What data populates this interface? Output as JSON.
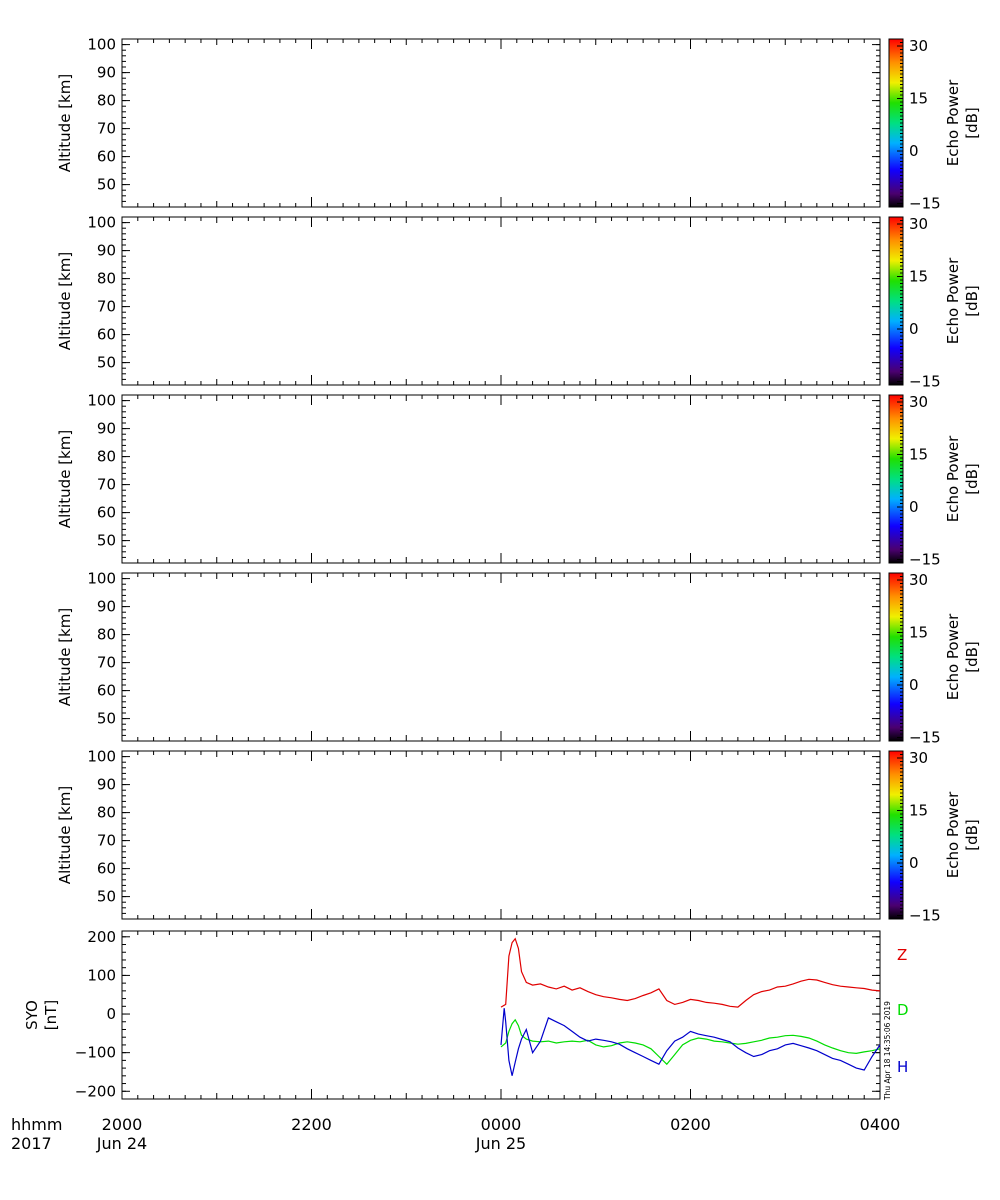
{
  "chart_data": [
    {
      "type": "heatmap",
      "ylabel": "Altitude  [km]",
      "yticks": [
        50,
        60,
        70,
        80,
        90,
        100
      ],
      "ylim": [
        42,
        102
      ],
      "colorbar": {
        "label_line1": "Echo Power",
        "label_line2": "[dB]",
        "ticks": [
          30,
          15,
          0,
          -15
        ],
        "range": [
          -16,
          32
        ]
      },
      "data": []
    },
    {
      "type": "heatmap",
      "ylabel": "Altitude  [km]",
      "yticks": [
        50,
        60,
        70,
        80,
        90,
        100
      ],
      "ylim": [
        42,
        102
      ],
      "colorbar": {
        "label_line1": "Echo Power",
        "label_line2": "[dB]",
        "ticks": [
          30,
          15,
          0,
          -15
        ],
        "range": [
          -16,
          32
        ]
      },
      "data": []
    },
    {
      "type": "heatmap",
      "ylabel": "Altitude  [km]",
      "yticks": [
        50,
        60,
        70,
        80,
        90,
        100
      ],
      "ylim": [
        42,
        102
      ],
      "colorbar": {
        "label_line1": "Echo Power",
        "label_line2": "[dB]",
        "ticks": [
          30,
          15,
          0,
          -15
        ],
        "range": [
          -16,
          32
        ]
      },
      "data": []
    },
    {
      "type": "heatmap",
      "ylabel": "Altitude  [km]",
      "yticks": [
        50,
        60,
        70,
        80,
        90,
        100
      ],
      "ylim": [
        42,
        102
      ],
      "colorbar": {
        "label_line1": "Echo Power",
        "label_line2": "[dB]",
        "ticks": [
          30,
          15,
          0,
          -15
        ],
        "range": [
          -16,
          32
        ]
      },
      "data": []
    },
    {
      "type": "heatmap",
      "ylabel": "Altitude  [km]",
      "yticks": [
        50,
        60,
        70,
        80,
        90,
        100
      ],
      "ylim": [
        42,
        102
      ],
      "colorbar": {
        "label_line1": "Echo Power",
        "label_line2": "[dB]",
        "ticks": [
          30,
          15,
          0,
          -15
        ],
        "range": [
          -16,
          32
        ]
      },
      "data": []
    },
    {
      "type": "line",
      "ylabel_line1": "SYO",
      "ylabel_line2": "[nT]",
      "yticks": [
        200,
        100,
        0,
        -100,
        -200
      ],
      "ylim": [
        -220,
        215
      ],
      "series": [
        {
          "name": "Z",
          "color": "#e00000",
          "x": [
            "00:00",
            "00:03",
            "00:05",
            "00:07",
            "00:09",
            "00:11",
            "00:13",
            "00:16",
            "00:20",
            "00:25",
            "00:30",
            "00:35",
            "00:40",
            "00:45",
            "00:50",
            "00:55",
            "01:00",
            "01:05",
            "01:10",
            "01:15",
            "01:20",
            "01:25",
            "01:30",
            "01:35",
            "01:40",
            "01:45",
            "01:50",
            "01:55",
            "02:00",
            "02:05",
            "02:10",
            "02:15",
            "02:20",
            "02:25",
            "02:30",
            "02:35",
            "02:40",
            "02:45",
            "02:50",
            "02:55",
            "03:00",
            "03:05",
            "03:10",
            "03:15",
            "03:20",
            "03:25",
            "03:30",
            "03:35",
            "03:40",
            "03:45",
            "03:50",
            "03:55",
            "04:00"
          ],
          "y": [
            18,
            25,
            150,
            185,
            195,
            170,
            110,
            82,
            75,
            78,
            70,
            65,
            72,
            62,
            68,
            58,
            50,
            45,
            42,
            38,
            35,
            40,
            48,
            55,
            65,
            35,
            25,
            30,
            38,
            35,
            30,
            28,
            25,
            20,
            18,
            35,
            50,
            58,
            62,
            70,
            72,
            78,
            85,
            90,
            88,
            82,
            76,
            72,
            70,
            68,
            66,
            62,
            60
          ]
        },
        {
          "name": "D",
          "color": "#00dd00",
          "x": [
            "00:00",
            "00:03",
            "00:05",
            "00:07",
            "00:09",
            "00:11",
            "00:13",
            "00:16",
            "00:20",
            "00:25",
            "00:30",
            "00:35",
            "00:40",
            "00:45",
            "00:50",
            "00:55",
            "01:00",
            "01:05",
            "01:10",
            "01:15",
            "01:20",
            "01:25",
            "01:30",
            "01:35",
            "01:40",
            "01:45",
            "01:50",
            "01:55",
            "02:00",
            "02:05",
            "02:10",
            "02:15",
            "02:20",
            "02:25",
            "02:30",
            "02:35",
            "02:40",
            "02:45",
            "02:50",
            "02:55",
            "03:00",
            "03:05",
            "03:10",
            "03:15",
            "03:20",
            "03:25",
            "03:30",
            "03:35",
            "03:40",
            "03:45",
            "03:50",
            "03:55",
            "04:00"
          ],
          "y": [
            -85,
            -75,
            -45,
            -25,
            -15,
            -30,
            -55,
            -65,
            -70,
            -72,
            -70,
            -75,
            -72,
            -70,
            -72,
            -68,
            -80,
            -85,
            -82,
            -75,
            -72,
            -75,
            -80,
            -90,
            -110,
            -130,
            -105,
            -80,
            -68,
            -62,
            -65,
            -70,
            -72,
            -75,
            -78,
            -76,
            -72,
            -68,
            -62,
            -60,
            -56,
            -55,
            -58,
            -62,
            -70,
            -80,
            -88,
            -95,
            -100,
            -102,
            -98,
            -95,
            -90
          ]
        },
        {
          "name": "H",
          "color": "#0000cc",
          "x": [
            "00:00",
            "00:02",
            "00:03",
            "00:05",
            "00:07",
            "00:09",
            "00:11",
            "00:13",
            "00:16",
            "00:20",
            "00:25",
            "00:30",
            "00:35",
            "00:40",
            "00:45",
            "00:50",
            "00:55",
            "01:00",
            "01:05",
            "01:10",
            "01:15",
            "01:20",
            "01:25",
            "01:30",
            "01:35",
            "01:40",
            "01:45",
            "01:50",
            "01:55",
            "02:00",
            "02:05",
            "02:10",
            "02:15",
            "02:20",
            "02:25",
            "02:30",
            "02:35",
            "02:40",
            "02:45",
            "02:50",
            "02:55",
            "03:00",
            "03:05",
            "03:10",
            "03:15",
            "03:20",
            "03:25",
            "03:30",
            "03:35",
            "03:40",
            "03:45",
            "03:50",
            "03:55",
            "04:00"
          ],
          "y": [
            -80,
            15,
            -20,
            -120,
            -160,
            -125,
            -90,
            -65,
            -40,
            -100,
            -70,
            -10,
            -20,
            -30,
            -45,
            -60,
            -70,
            -65,
            -68,
            -72,
            -78,
            -90,
            -100,
            -110,
            -120,
            -130,
            -95,
            -70,
            -60,
            -45,
            -52,
            -56,
            -60,
            -66,
            -72,
            -88,
            -100,
            -110,
            -105,
            -95,
            -90,
            -80,
            -76,
            -82,
            -88,
            -95,
            -105,
            -115,
            -120,
            -130,
            -140,
            -145,
            -110,
            -80
          ]
        }
      ]
    }
  ],
  "time_axis": {
    "row1_label": "hhmm",
    "row2_label": "2017",
    "ticks": [
      {
        "t": "20:00",
        "label": "2000",
        "date": "Jun 24"
      },
      {
        "t": "22:00",
        "label": "2200",
        "date": ""
      },
      {
        "t": "00:00",
        "label": "0000",
        "date": "Jun 25"
      },
      {
        "t": "02:00",
        "label": "0200",
        "date": ""
      },
      {
        "t": "04:00",
        "label": "0400",
        "date": ""
      }
    ],
    "range": [
      "2017-06-24 20:00",
      "2017-06-25 04:00"
    ]
  },
  "timestamp": "Thu Apr 18 14:35:06 2019"
}
